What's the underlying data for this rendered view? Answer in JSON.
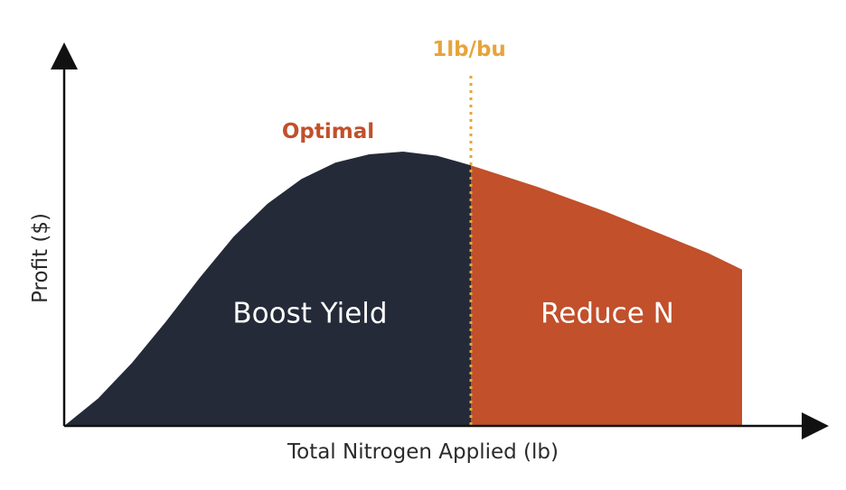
{
  "chart_data": {
    "type": "area",
    "title": "",
    "xlabel": "Total Nitrogen Applied (lb)",
    "ylabel": "Profit ($)",
    "x_ticks": [],
    "y_ticks": [],
    "grid": false,
    "curve": {
      "x": [
        0,
        5,
        10,
        15,
        20,
        25,
        30,
        35,
        40,
        45,
        50,
        55,
        60,
        65,
        70,
        75,
        80,
        85,
        90,
        95,
        100
      ],
      "y": [
        0,
        10,
        23,
        38,
        54,
        69,
        81,
        90,
        96,
        99,
        100,
        98.5,
        95,
        91,
        87,
        82.5,
        78,
        73,
        68,
        63,
        57
      ]
    },
    "regions": [
      {
        "label": "Boost Yield",
        "x_range": [
          0,
          60
        ],
        "color": "#242a38"
      },
      {
        "label": "Reduce N",
        "x_range": [
          60,
          100
        ],
        "color": "#c1502b"
      }
    ],
    "annotations": {
      "optimal": {
        "text": "Optimal",
        "color": "#c1502b"
      },
      "threshold": {
        "text": "1lb/bu",
        "x": 60,
        "color": "#e7a43a"
      }
    }
  }
}
